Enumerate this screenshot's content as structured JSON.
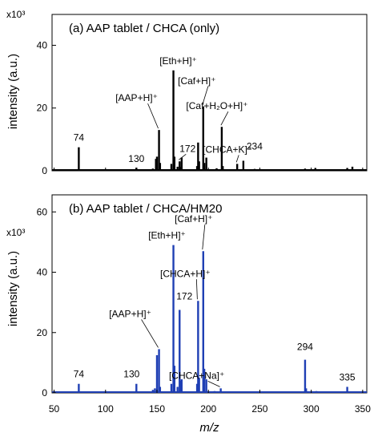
{
  "chart_data": [
    {
      "type": "bar",
      "title": "(a) AAP tablet / CHCA (only)",
      "xlabel": "m/z",
      "ylabel": "intensity (a.u.)",
      "yscale_label": "x10³",
      "xlim": [
        48,
        354
      ],
      "ylim": [
        0,
        46
      ],
      "yticks": [
        0,
        20,
        40
      ],
      "color": "#000000",
      "peaks": [
        {
          "x": 74,
          "y": 7.5
        },
        {
          "x": 104,
          "y": 0.4
        },
        {
          "x": 130,
          "y": 1.0
        },
        {
          "x": 146,
          "y": 0.7
        },
        {
          "x": 149,
          "y": 3.8
        },
        {
          "x": 150,
          "y": 4.5
        },
        {
          "x": 152,
          "y": 13.0
        },
        {
          "x": 153,
          "y": 2.5
        },
        {
          "x": 164,
          "y": 2.2
        },
        {
          "x": 166,
          "y": 32.0
        },
        {
          "x": 167,
          "y": 4.5
        },
        {
          "x": 170,
          "y": 1.3
        },
        {
          "x": 172,
          "y": 3.0
        },
        {
          "x": 173,
          "y": 1.2
        },
        {
          "x": 174,
          "y": 4.2
        },
        {
          "x": 189,
          "y": 1.5
        },
        {
          "x": 190,
          "y": 9.0
        },
        {
          "x": 191,
          "y": 3.0
        },
        {
          "x": 195,
          "y": 20.5
        },
        {
          "x": 196,
          "y": 2.5
        },
        {
          "x": 198,
          "y": 4.2
        },
        {
          "x": 208,
          "y": 0.8
        },
        {
          "x": 213,
          "y": 14.0
        },
        {
          "x": 214,
          "y": 1.5
        },
        {
          "x": 217,
          "y": 0.5
        },
        {
          "x": 228,
          "y": 2.2
        },
        {
          "x": 234,
          "y": 3.2
        },
        {
          "x": 245,
          "y": 0.6
        },
        {
          "x": 250,
          "y": 0.4
        },
        {
          "x": 294,
          "y": 0.7
        },
        {
          "x": 304,
          "y": 0.9
        },
        {
          "x": 325,
          "y": 0.3
        },
        {
          "x": 335,
          "y": 0.9
        },
        {
          "x": 340,
          "y": 1.3
        }
      ],
      "labels": [
        {
          "text": "74",
          "x": 74,
          "y": 7.5,
          "leader": false
        },
        {
          "text": "130",
          "x": 130,
          "y": 1.0,
          "leader": false
        },
        {
          "text": "[AAP+H]⁺",
          "x": 152,
          "y": 13.0,
          "leader": true
        },
        {
          "text": "[Eth+H]⁺",
          "x": 166,
          "y": 32.0,
          "leader": false
        },
        {
          "text": "172",
          "x": 172,
          "y": 3.0,
          "leader": true
        },
        {
          "text": "[Caf+H]⁺",
          "x": 195,
          "y": 20.5,
          "leader": true
        },
        {
          "text": "[Caf+H₂O+H]⁺",
          "x": 213,
          "y": 14.0,
          "leader": true
        },
        {
          "text": "[CHCA+K]⁺",
          "x": 228,
          "y": 2.2,
          "leader": true
        },
        {
          "text": "234",
          "x": 234,
          "y": 3.2,
          "leader": false
        }
      ]
    },
    {
      "type": "bar",
      "title": "(b) AAP tablet / CHCA/HM20",
      "xlabel": "m/z",
      "ylabel": "intensity (a.u.)",
      "yscale_label": "x10³",
      "xlim": [
        48,
        354
      ],
      "ylim": [
        0,
        63
      ],
      "yticks": [
        0,
        20,
        40,
        60
      ],
      "xticks": [
        50,
        100,
        150,
        200,
        250,
        300,
        350
      ],
      "color": "#1f3fb4",
      "peaks": [
        {
          "x": 74,
          "y": 3.0
        },
        {
          "x": 90,
          "y": 0.4
        },
        {
          "x": 130,
          "y": 3.0
        },
        {
          "x": 146,
          "y": 1.0
        },
        {
          "x": 148,
          "y": 1.5
        },
        {
          "x": 150,
          "y": 12.5
        },
        {
          "x": 152,
          "y": 14.5
        },
        {
          "x": 153,
          "y": 2.0
        },
        {
          "x": 164,
          "y": 3.0
        },
        {
          "x": 166,
          "y": 49.0
        },
        {
          "x": 167,
          "y": 9.0
        },
        {
          "x": 170,
          "y": 2.0
        },
        {
          "x": 172,
          "y": 27.5
        },
        {
          "x": 173,
          "y": 4.0
        },
        {
          "x": 174,
          "y": 4.5
        },
        {
          "x": 189,
          "y": 3.0
        },
        {
          "x": 190,
          "y": 30.5
        },
        {
          "x": 191,
          "y": 5.0
        },
        {
          "x": 195,
          "y": 47.0
        },
        {
          "x": 196,
          "y": 8.0
        },
        {
          "x": 198,
          "y": 4.5
        },
        {
          "x": 206,
          "y": 0.6
        },
        {
          "x": 212,
          "y": 1.5
        },
        {
          "x": 220,
          "y": 0.5
        },
        {
          "x": 294,
          "y": 11.0
        },
        {
          "x": 295,
          "y": 1.5
        },
        {
          "x": 305,
          "y": 0.6
        },
        {
          "x": 335,
          "y": 2.0
        }
      ],
      "labels": [
        {
          "text": "74",
          "x": 74,
          "y": 3.0,
          "leader": false
        },
        {
          "text": "130",
          "x": 130,
          "y": 3.0,
          "leader": false
        },
        {
          "text": "[AAP+H]⁺",
          "x": 152,
          "y": 14.5,
          "leader": true
        },
        {
          "text": "[Eth+H]⁺",
          "x": 166,
          "y": 49.0,
          "leader": false
        },
        {
          "text": "172",
          "x": 172,
          "y": 27.5,
          "leader": false
        },
        {
          "text": "[CHCA+H]⁺",
          "x": 190,
          "y": 30.5,
          "leader": true
        },
        {
          "text": "[Caf+H]⁺",
          "x": 195,
          "y": 47.0,
          "leader": true
        },
        {
          "text": "[CHCA+Na]⁺",
          "x": 212,
          "y": 1.5,
          "leader": true
        },
        {
          "text": "294",
          "x": 294,
          "y": 11.0,
          "leader": false
        },
        {
          "text": "335",
          "x": 335,
          "y": 2.0,
          "leader": false
        }
      ]
    }
  ]
}
